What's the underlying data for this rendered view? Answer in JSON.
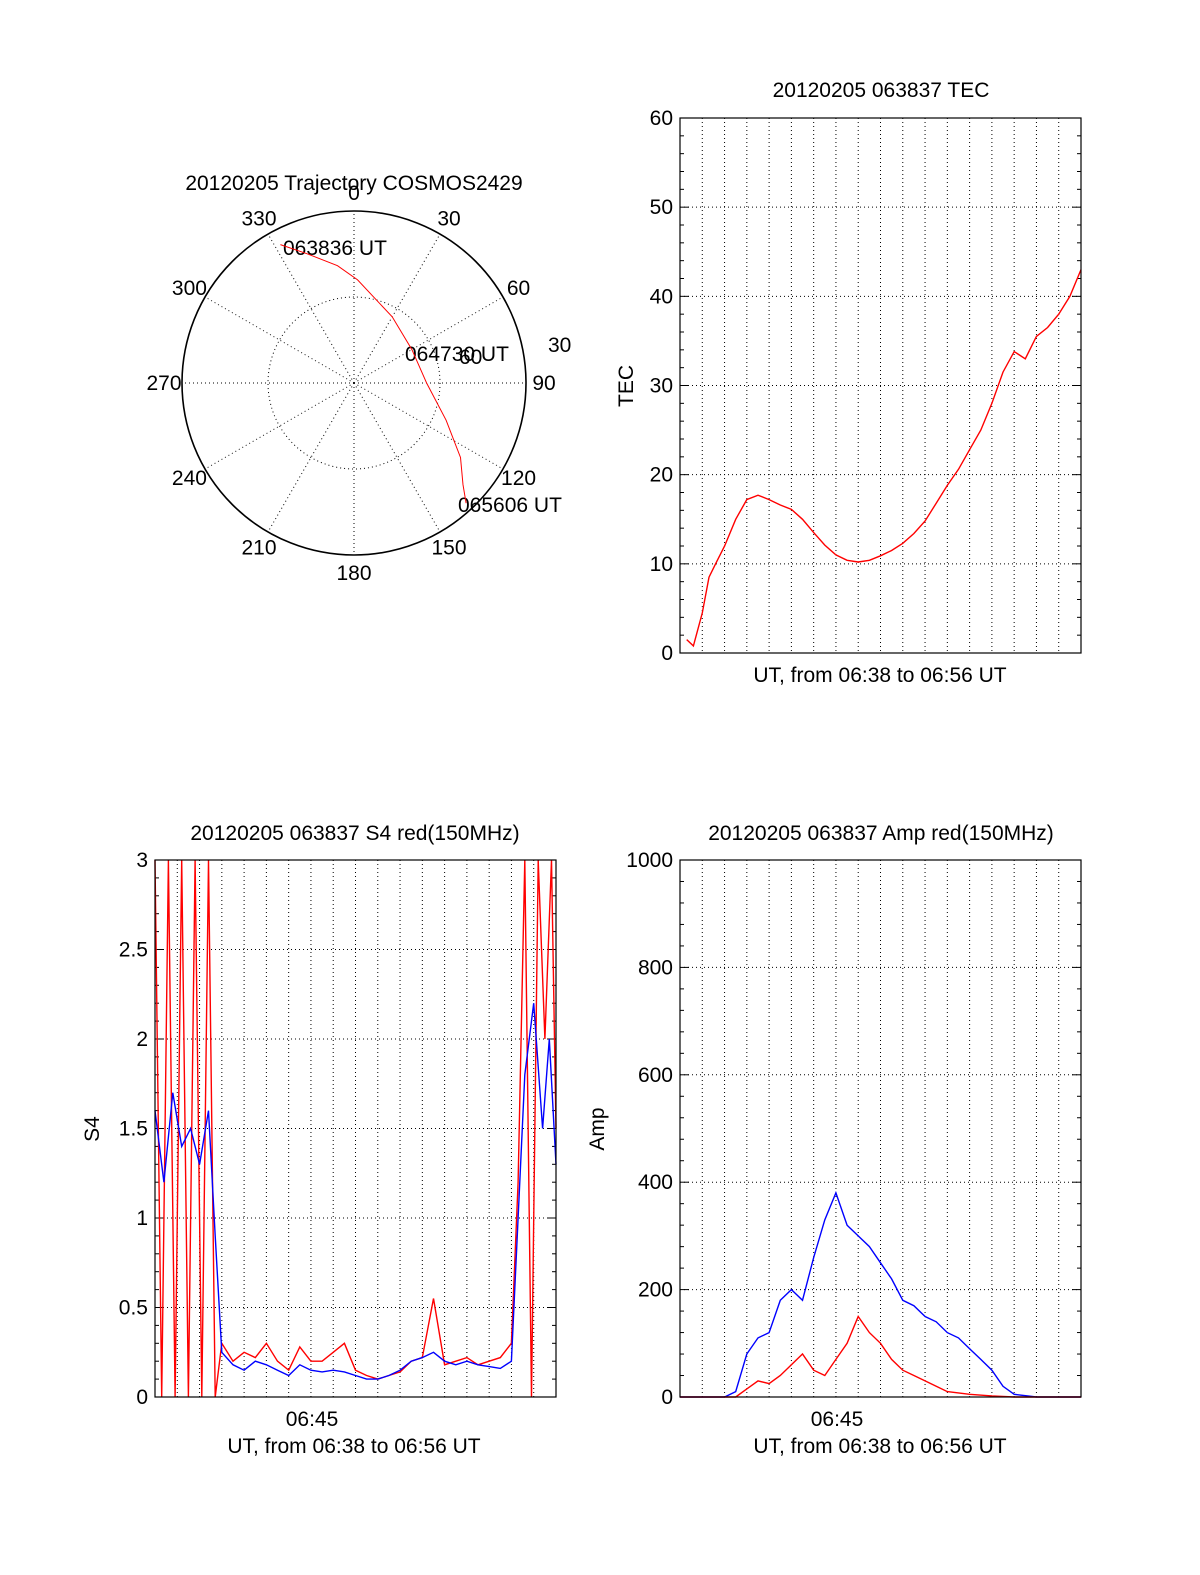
{
  "colors": {
    "red": "#ff0000",
    "blue": "#0000ff",
    "grid": "#000000"
  },
  "chart_data": [
    {
      "type": "polar",
      "title": "20120205 Trajectory COSMOS2429",
      "angle_labels": [
        "0",
        "30",
        "60",
        "90",
        "120",
        "150",
        "180",
        "210",
        "240",
        "270",
        "300",
        "330"
      ],
      "radius_labels": [
        "30",
        "60"
      ],
      "series": [
        {
          "color": "red",
          "points_az_zen": [
            [
              -28,
              82
            ],
            [
              -20,
              72
            ],
            [
              -8,
              62
            ],
            [
              2,
              54
            ],
            [
              30,
              40
            ],
            [
              60,
              35
            ],
            [
              90,
              38
            ],
            [
              112,
              52
            ],
            [
              125,
              68
            ],
            [
              133,
              78
            ],
            [
              137,
              86
            ]
          ]
        }
      ],
      "annotations": [
        "063836 UT",
        "064730 UT",
        "065606 UT"
      ]
    },
    {
      "type": "line",
      "title": "20120205 063837 TEC",
      "xlabel": "UT, from 06:38 to 06:56 UT",
      "ylabel": "TEC",
      "xlim": [
        0,
        18
      ],
      "ylim": [
        0,
        60
      ],
      "yticks": [
        "0",
        "10",
        "20",
        "30",
        "40",
        "50",
        "60"
      ],
      "series": [
        {
          "color": "red",
          "x": [
            0.3,
            0.6,
            1.0,
            1.3,
            1.6,
            2.0,
            2.5,
            3.0,
            3.5,
            4.0,
            4.5,
            5.0,
            5.5,
            6.0,
            6.5,
            7.0,
            7.5,
            8.0,
            8.5,
            9.0,
            9.5,
            10.0,
            10.5,
            11.0,
            11.5,
            12.0,
            12.5,
            13.0,
            13.5,
            14.0,
            14.5,
            15.0,
            15.5,
            16.0,
            16.5,
            17.0,
            17.5,
            18.0
          ],
          "y": [
            1.5,
            0.8,
            4.5,
            8.5,
            10.0,
            12.0,
            15.0,
            17.2,
            17.7,
            17.2,
            16.6,
            16.1,
            15.0,
            13.5,
            12.1,
            11.0,
            10.4,
            10.2,
            10.4,
            10.9,
            11.5,
            12.3,
            13.4,
            14.8,
            16.8,
            18.8,
            20.6,
            22.8,
            25.0,
            28.0,
            31.5,
            33.8,
            33.0,
            35.5,
            36.5,
            38.0,
            40.0,
            43.0
          ]
        }
      ]
    },
    {
      "type": "line",
      "title": "20120205 063837 S4 red(150MHz)",
      "xlabel": "UT, from 06:38 to 06:56 UT",
      "ylabel": "S4",
      "xlim": [
        0,
        18
      ],
      "ylim": [
        0,
        3
      ],
      "xticks": [
        "06:45"
      ],
      "yticks": [
        "0",
        "0.5",
        "1",
        "1.5",
        "2",
        "2.5",
        "3"
      ],
      "series": [
        {
          "color": "red",
          "x": [
            0.0,
            0.3,
            0.6,
            0.9,
            1.2,
            1.5,
            1.8,
            2.1,
            2.4,
            2.7,
            3.0,
            3.5,
            4.0,
            4.5,
            5.0,
            5.5,
            6.0,
            6.5,
            7.0,
            7.5,
            8.0,
            8.5,
            9.0,
            9.5,
            10.0,
            10.5,
            11.0,
            11.5,
            12.0,
            12.5,
            13.0,
            13.5,
            14.0,
            14.5,
            15.0,
            15.5,
            16.0,
            16.3,
            16.6,
            16.9,
            17.2,
            17.5,
            17.8,
            18.0
          ],
          "y": [
            3.0,
            0.0,
            3.0,
            0.0,
            3.0,
            0.0,
            3.0,
            0.0,
            3.0,
            0.0,
            0.3,
            0.2,
            0.25,
            0.22,
            0.3,
            0.2,
            0.15,
            0.28,
            0.2,
            0.2,
            0.25,
            0.3,
            0.15,
            0.12,
            0.1,
            0.12,
            0.14,
            0.2,
            0.22,
            0.55,
            0.18,
            0.2,
            0.22,
            0.18,
            0.2,
            0.22,
            0.3,
            1.2,
            3.0,
            0.0,
            3.0,
            2.0,
            3.0,
            1.5
          ]
        },
        {
          "color": "blue",
          "x": [
            0.0,
            0.4,
            0.8,
            1.2,
            1.6,
            2.0,
            2.4,
            2.7,
            3.0,
            3.5,
            4.0,
            4.5,
            5.0,
            5.5,
            6.0,
            6.5,
            7.0,
            7.5,
            8.0,
            8.5,
            9.0,
            9.5,
            10.0,
            10.5,
            11.0,
            11.5,
            12.0,
            12.5,
            13.0,
            13.5,
            14.0,
            14.5,
            15.0,
            15.5,
            16.0,
            16.3,
            16.6,
            17.0,
            17.4,
            17.7,
            18.0
          ],
          "y": [
            1.6,
            1.2,
            1.7,
            1.4,
            1.5,
            1.3,
            1.6,
            0.9,
            0.25,
            0.18,
            0.15,
            0.2,
            0.18,
            0.15,
            0.12,
            0.18,
            0.15,
            0.14,
            0.15,
            0.14,
            0.12,
            0.1,
            0.1,
            0.12,
            0.15,
            0.2,
            0.22,
            0.25,
            0.2,
            0.18,
            0.2,
            0.18,
            0.17,
            0.16,
            0.2,
            1.0,
            1.8,
            2.2,
            1.5,
            2.0,
            1.3
          ]
        }
      ]
    },
    {
      "type": "line",
      "title": "20120205 063837 Amp red(150MHz)",
      "xlabel": "UT, from 06:38 to 06:56 UT",
      "ylabel": "Amp",
      "xlim": [
        0,
        18
      ],
      "ylim": [
        0,
        1000
      ],
      "xticks": [
        "06:45"
      ],
      "yticks": [
        "0",
        "200",
        "400",
        "600",
        "800",
        "1000"
      ],
      "series": [
        {
          "color": "blue",
          "x": [
            0.0,
            2.0,
            2.5,
            3.0,
            3.5,
            4.0,
            4.5,
            5.0,
            5.5,
            6.0,
            6.5,
            7.0,
            7.5,
            8.0,
            8.5,
            9.0,
            9.5,
            10.0,
            10.5,
            11.0,
            11.5,
            12.0,
            12.5,
            13.0,
            13.5,
            14.0,
            14.5,
            15.0,
            16.0,
            18.0
          ],
          "y": [
            0,
            0,
            10,
            80,
            110,
            120,
            180,
            200,
            180,
            260,
            330,
            380,
            320,
            300,
            280,
            250,
            220,
            180,
            170,
            150,
            140,
            120,
            110,
            90,
            70,
            50,
            20,
            5,
            0,
            0
          ]
        },
        {
          "color": "red",
          "x": [
            0.0,
            2.5,
            3.0,
            3.5,
            4.0,
            4.5,
            5.0,
            5.5,
            6.0,
            6.5,
            7.0,
            7.5,
            8.0,
            8.5,
            9.0,
            9.5,
            10.0,
            10.5,
            11.0,
            11.5,
            12.0,
            13.0,
            14.0,
            15.0,
            18.0
          ],
          "y": [
            0,
            0,
            15,
            30,
            25,
            40,
            60,
            80,
            50,
            40,
            70,
            100,
            150,
            120,
            100,
            70,
            50,
            40,
            30,
            20,
            10,
            5,
            2,
            0,
            0
          ]
        }
      ]
    }
  ]
}
